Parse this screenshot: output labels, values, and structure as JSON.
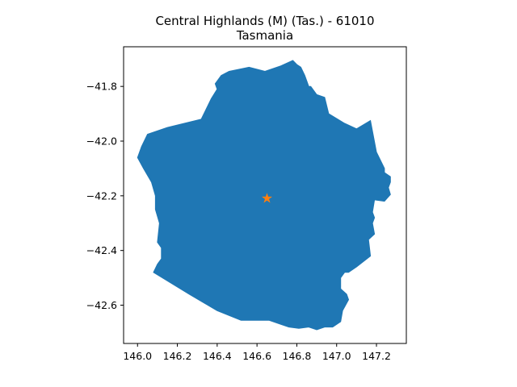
{
  "title": {
    "line1": "Central Highlands (M) (Tas.) - 61010",
    "line2": "Tasmania"
  },
  "colors": {
    "region_fill": "#1f77b4",
    "marker": "#ff7f0e"
  },
  "chart_data": {
    "type": "scatter",
    "xlim": [
      145.93,
      147.35
    ],
    "ylim": [
      -42.74,
      -41.655
    ],
    "x_ticks": [
      "146.0",
      "146.2",
      "146.4",
      "146.6",
      "146.8",
      "147.0",
      "147.2"
    ],
    "y_ticks": [
      "−41.8",
      "−42.0",
      "−42.2",
      "−42.4",
      "−42.6"
    ],
    "grid": false,
    "marker_point": {
      "x": 146.65,
      "y": -42.21,
      "symbol": "star"
    },
    "region_outline": [
      [
        146.46,
        -41.745
      ],
      [
        146.56,
        -41.73
      ],
      [
        146.64,
        -41.745
      ],
      [
        146.72,
        -41.725
      ],
      [
        146.78,
        -41.705
      ],
      [
        146.8,
        -41.72
      ],
      [
        146.82,
        -41.73
      ],
      [
        146.84,
        -41.76
      ],
      [
        146.86,
        -41.8
      ],
      [
        146.87,
        -41.8
      ],
      [
        146.9,
        -41.83
      ],
      [
        146.94,
        -41.84
      ],
      [
        146.96,
        -41.9
      ],
      [
        147.04,
        -41.935
      ],
      [
        147.1,
        -41.955
      ],
      [
        147.17,
        -41.925
      ],
      [
        147.2,
        -42.04
      ],
      [
        147.24,
        -42.1
      ],
      [
        147.24,
        -42.115
      ],
      [
        147.27,
        -42.13
      ],
      [
        147.27,
        -42.15
      ],
      [
        147.26,
        -42.17
      ],
      [
        147.27,
        -42.195
      ],
      [
        147.24,
        -42.22
      ],
      [
        147.19,
        -42.215
      ],
      [
        147.18,
        -42.26
      ],
      [
        147.19,
        -42.28
      ],
      [
        147.18,
        -42.3
      ],
      [
        147.19,
        -42.34
      ],
      [
        147.16,
        -42.36
      ],
      [
        147.17,
        -42.42
      ],
      [
        147.1,
        -42.46
      ],
      [
        147.06,
        -42.48
      ],
      [
        147.04,
        -42.48
      ],
      [
        147.02,
        -42.5
      ],
      [
        147.02,
        -42.54
      ],
      [
        147.05,
        -42.56
      ],
      [
        147.06,
        -42.58
      ],
      [
        147.03,
        -42.62
      ],
      [
        147.02,
        -42.66
      ],
      [
        146.98,
        -42.68
      ],
      [
        146.94,
        -42.68
      ],
      [
        146.9,
        -42.69
      ],
      [
        146.86,
        -42.68
      ],
      [
        146.81,
        -42.685
      ],
      [
        146.76,
        -42.68
      ],
      [
        146.72,
        -42.67
      ],
      [
        146.66,
        -42.655
      ],
      [
        146.52,
        -42.655
      ],
      [
        146.4,
        -42.62
      ],
      [
        146.26,
        -42.56
      ],
      [
        146.08,
        -42.48
      ],
      [
        146.1,
        -42.45
      ],
      [
        146.12,
        -42.43
      ],
      [
        146.12,
        -42.39
      ],
      [
        146.1,
        -42.37
      ],
      [
        146.11,
        -42.3
      ],
      [
        146.09,
        -42.25
      ],
      [
        146.09,
        -42.2
      ],
      [
        146.07,
        -42.15
      ],
      [
        146.03,
        -42.1
      ],
      [
        146.0,
        -42.06
      ],
      [
        146.02,
        -42.02
      ],
      [
        146.05,
        -41.975
      ],
      [
        146.15,
        -41.95
      ],
      [
        146.32,
        -41.92
      ],
      [
        146.37,
        -41.845
      ],
      [
        146.4,
        -41.81
      ],
      [
        146.39,
        -41.79
      ],
      [
        146.42,
        -41.76
      ]
    ]
  }
}
